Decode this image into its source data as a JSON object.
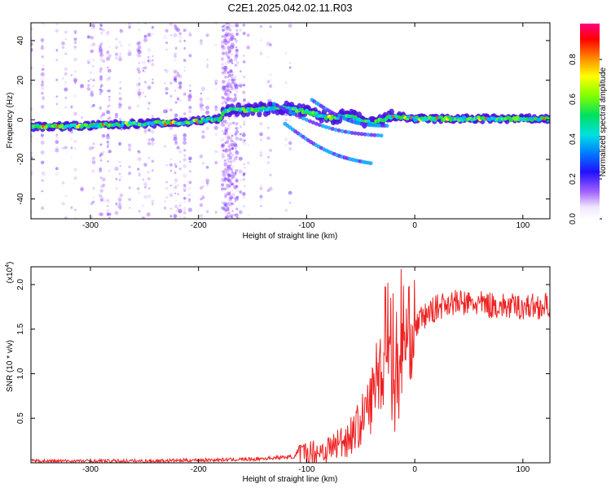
{
  "title": "C2E1.2025.042.02.11.R03",
  "chart_data": [
    {
      "type": "heatmap",
      "name": "spectrogram",
      "xlabel": "Height of straight line (km)",
      "ylabel": "Frequency (Hz)",
      "xlim": [
        -355,
        125
      ],
      "ylim": [
        -50,
        49
      ],
      "xticks": [
        -300,
        -200,
        -100,
        0,
        100
      ],
      "yticks": [
        -40,
        -20,
        0,
        20,
        40
      ],
      "colorbar": {
        "label": "Normalized spectral amplitude",
        "range": [
          0,
          0.98
        ],
        "ticks": [
          0.0,
          0.2,
          0.4,
          0.6,
          0.8
        ]
      },
      "ridge": [
        {
          "x": -355,
          "f": -3.5
        },
        {
          "x": -300,
          "f": -3.0
        },
        {
          "x": -260,
          "f": -2.0
        },
        {
          "x": -220,
          "f": -1.5
        },
        {
          "x": -180,
          "f": 0.5
        },
        {
          "x": -175,
          "f": 5.0
        },
        {
          "x": -150,
          "f": 5.0
        },
        {
          "x": -120,
          "f": 6.0
        },
        {
          "x": -100,
          "f": 4.0
        },
        {
          "x": -80,
          "f": 1.0
        },
        {
          "x": -60,
          "f": 2.0
        },
        {
          "x": -40,
          "f": -2.0
        },
        {
          "x": -20,
          "f": 2.0
        },
        {
          "x": 0,
          "f": 0.5
        },
        {
          "x": 50,
          "f": 0.5
        },
        {
          "x": 125,
          "f": 0.5
        }
      ]
    },
    {
      "type": "line",
      "name": "snr",
      "xlabel": "Height of straight line (km)",
      "ylabel": "SNR (10 * v/v)",
      "scale_note": "(x10",
      "scale_exp": "4",
      "xlim": [
        -355,
        125
      ],
      "ylim": [
        0,
        2.2
      ],
      "xticks": [
        -300,
        -200,
        -100,
        0,
        100
      ],
      "yticks": [
        0.5,
        1.0,
        1.5,
        2.0
      ],
      "envelope": [
        {
          "x": -355,
          "y": 0.02
        },
        {
          "x": -250,
          "y": 0.02
        },
        {
          "x": -200,
          "y": 0.03
        },
        {
          "x": -150,
          "y": 0.04
        },
        {
          "x": -110,
          "y": 0.07
        },
        {
          "x": -80,
          "y": 0.15
        },
        {
          "x": -60,
          "y": 0.3
        },
        {
          "x": -50,
          "y": 0.45
        },
        {
          "x": -40,
          "y": 0.7
        },
        {
          "x": -35,
          "y": 1.0
        },
        {
          "x": -30,
          "y": 1.1
        },
        {
          "x": -25,
          "y": 1.3
        },
        {
          "x": -20,
          "y": 0.8
        },
        {
          "x": -15,
          "y": 0.9
        },
        {
          "x": -10,
          "y": 1.3
        },
        {
          "x": -5,
          "y": 1.45
        },
        {
          "x": 5,
          "y": 1.6
        },
        {
          "x": 15,
          "y": 1.7
        },
        {
          "x": 30,
          "y": 1.8
        },
        {
          "x": 60,
          "y": 1.78
        },
        {
          "x": 90,
          "y": 1.75
        },
        {
          "x": 125,
          "y": 1.76
        }
      ]
    }
  ]
}
